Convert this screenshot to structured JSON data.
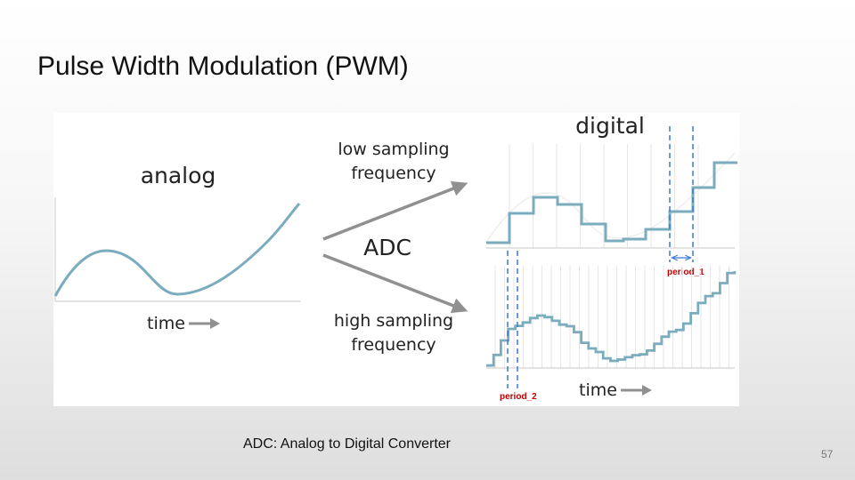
{
  "slide": {
    "title": "Pulse Width Modulation (PWM)",
    "caption": "ADC: Analog to Digital Converter",
    "page_number": "57"
  },
  "diagram": {
    "analog_label": "analog",
    "digital_label": "digital",
    "time_label": "time",
    "low_sampling_line1": "low sampling",
    "low_sampling_line2": "frequency",
    "high_sampling_line1": "high sampling",
    "high_sampling_line2": "frequency",
    "adc_label": "ADC",
    "period_1_label": "period_1",
    "period_2_label": "period_2"
  },
  "colors": {
    "signal": "#7aacbd",
    "arrow": "#909090",
    "marker": "#3a78d6",
    "marker_label": "#c00000",
    "grid": "#e6e6e6",
    "axis": "#c8c8c8"
  },
  "icons": {
    "time_arrow": "right-arrow-icon",
    "conversion_arrows": "diagonal-arrow-icon"
  }
}
